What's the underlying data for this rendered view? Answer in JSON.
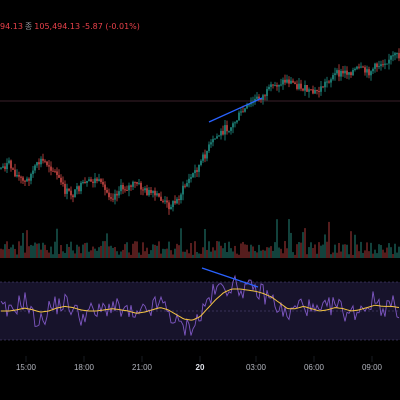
{
  "ohlc": {
    "close_fragment": "94.13",
    "close_key": "종",
    "close_value": "105,494.13",
    "change": "-5.87 (-0.01%)"
  },
  "time_axis": {
    "labels": [
      "15:00",
      "18:00",
      "21:00",
      "20",
      "03:00",
      "06:00",
      "09:00"
    ],
    "bold_label": "20"
  },
  "colors": {
    "background": "#000000",
    "up": "#26a69a",
    "down": "#ef5350",
    "rsi_line": "#7e57c2",
    "rsi_ma": "#f5c542",
    "trendline": "#2962ff",
    "rsi_band": "#1f1a3a",
    "grid": "#2a2e39"
  },
  "chart_data": {
    "type": "candlestick",
    "price_trend": [
      0.62,
      0.6,
      0.66,
      0.7,
      0.64,
      0.58,
      0.6,
      0.66,
      0.74,
      0.76,
      0.72,
      0.7,
      0.68,
      0.74,
      0.77,
      0.73,
      0.72,
      0.7,
      0.74,
      0.76,
      0.78,
      0.82,
      0.8,
      0.72,
      0.66,
      0.6,
      0.52,
      0.46,
      0.42,
      0.4,
      0.34,
      0.3,
      0.26,
      0.24,
      0.2,
      0.17,
      0.16,
      0.18,
      0.2,
      0.23,
      0.21,
      0.16,
      0.13,
      0.12,
      0.11,
      0.1,
      0.12,
      0.09,
      0.06,
      0.04,
      0.03
    ],
    "rsi_trend": [
      0.55,
      0.45,
      0.6,
      0.7,
      0.4,
      0.3,
      0.55,
      0.6,
      0.65,
      0.55,
      0.4,
      0.5,
      0.45,
      0.55,
      0.6,
      0.5,
      0.48,
      0.35,
      0.5,
      0.55,
      0.65,
      0.5,
      0.3,
      0.2,
      0.25,
      0.4,
      0.7,
      0.85,
      0.92,
      0.95,
      0.9,
      0.88,
      0.85,
      0.8,
      0.7,
      0.55,
      0.4,
      0.55,
      0.65,
      0.5,
      0.45,
      0.55,
      0.62,
      0.5,
      0.45,
      0.55,
      0.6,
      0.7,
      0.55,
      0.62,
      0.52
    ],
    "rsi_ma_trend": [
      0.5,
      0.5,
      0.52,
      0.55,
      0.52,
      0.48,
      0.5,
      0.55,
      0.58,
      0.56,
      0.52,
      0.5,
      0.5,
      0.52,
      0.54,
      0.52,
      0.5,
      0.46,
      0.48,
      0.52,
      0.56,
      0.52,
      0.44,
      0.36,
      0.34,
      0.4,
      0.55,
      0.7,
      0.82,
      0.88,
      0.88,
      0.86,
      0.84,
      0.8,
      0.74,
      0.64,
      0.54,
      0.54,
      0.58,
      0.54,
      0.5,
      0.52,
      0.56,
      0.54,
      0.5,
      0.52,
      0.56,
      0.6,
      0.58,
      0.58,
      0.56
    ]
  }
}
